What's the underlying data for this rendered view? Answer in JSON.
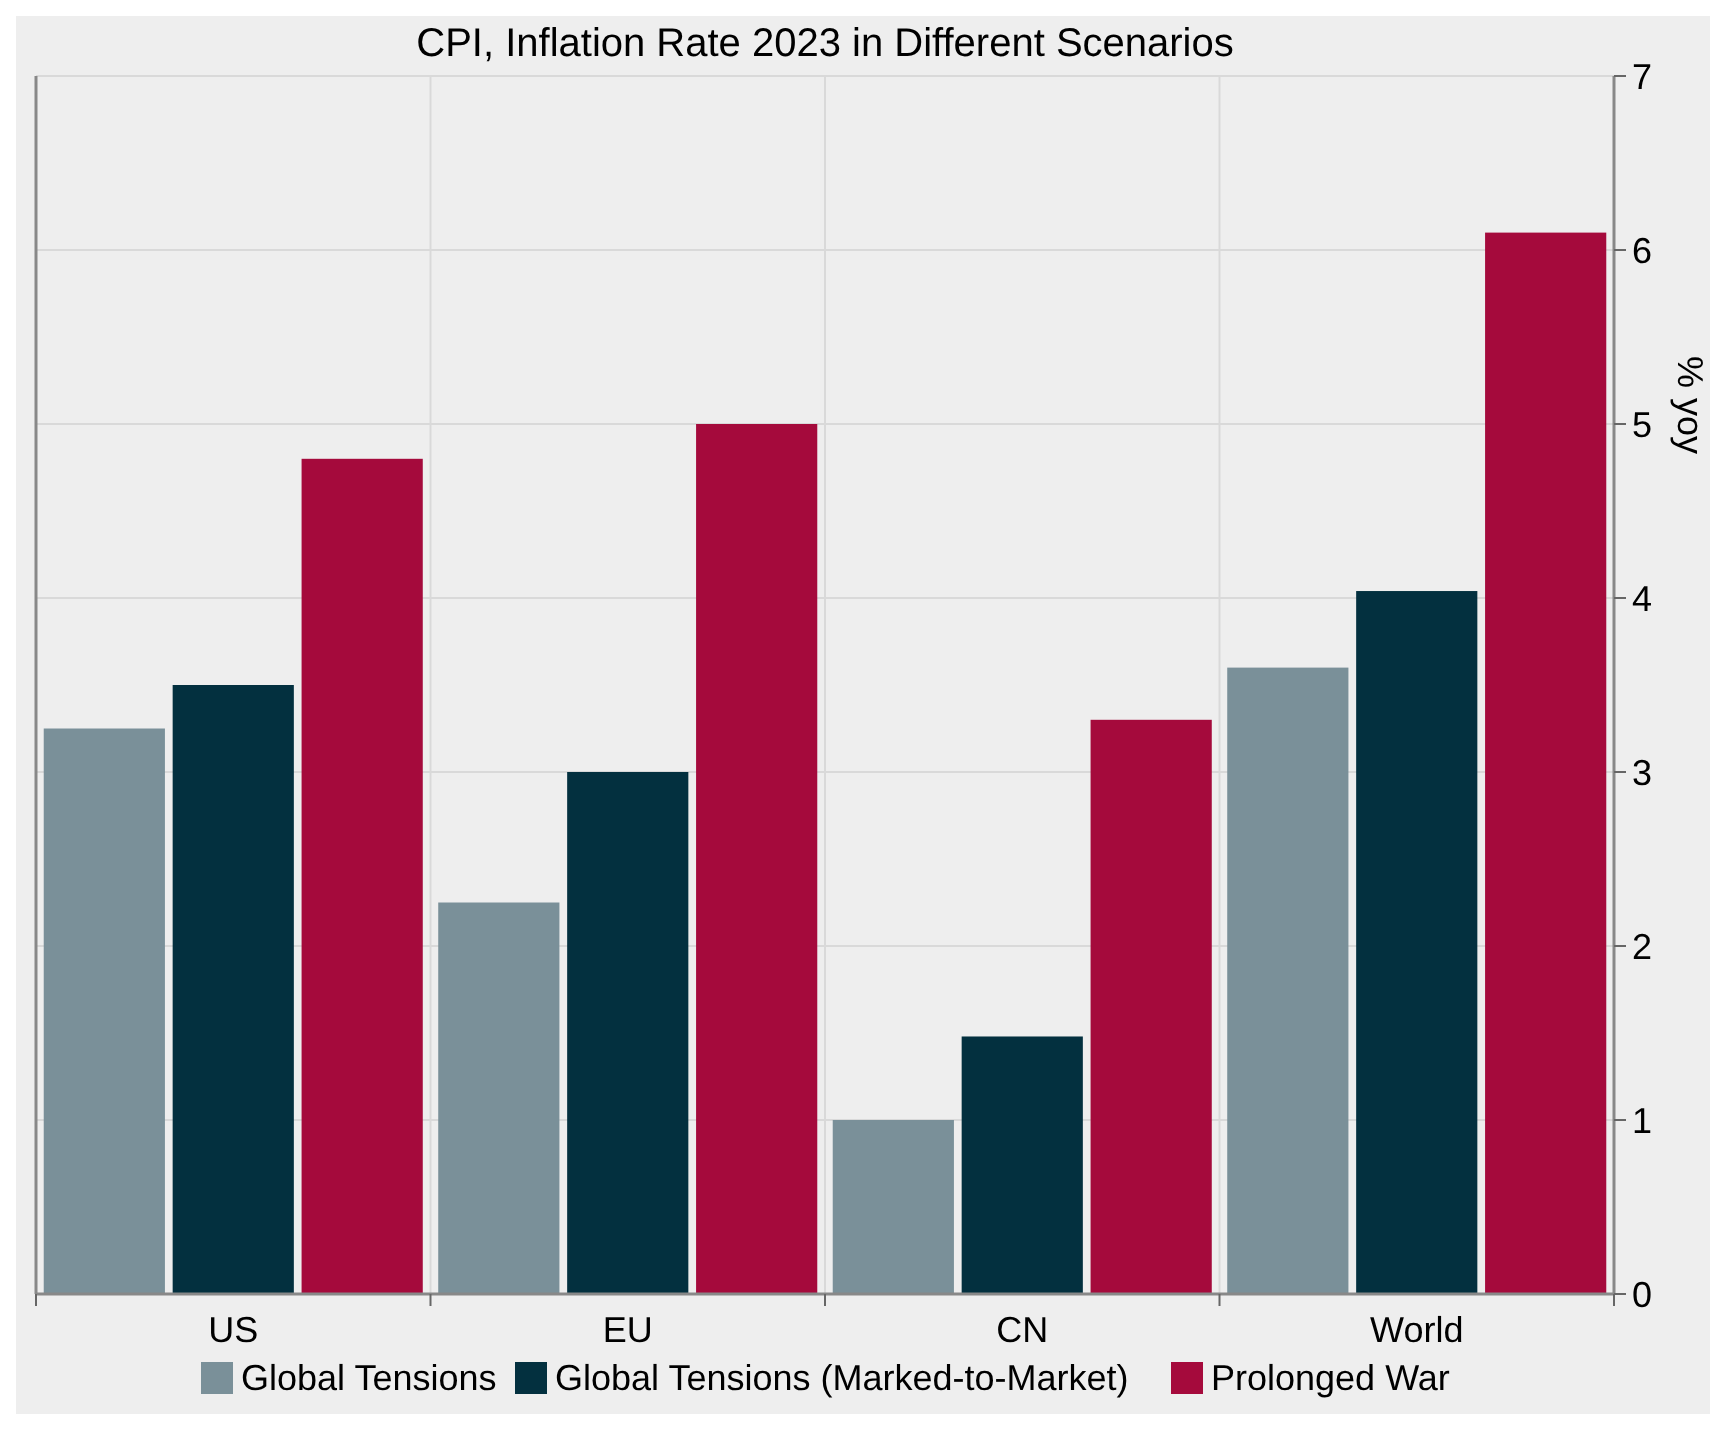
{
  "chart_data": {
    "type": "bar",
    "title": "CPI, Inflation Rate 2023 in Different Scenarios",
    "ylabel": "% yoy",
    "categories": [
      "US",
      "EU",
      "CN",
      "World"
    ],
    "series": [
      {
        "name": "Global Tensions",
        "color": "#7a9099",
        "values": [
          3.25,
          2.25,
          1.0,
          3.6
        ]
      },
      {
        "name": "Global Tensions (Marked-to-Market)",
        "color": "#03303f",
        "values": [
          3.5,
          3.0,
          1.48,
          4.04
        ]
      },
      {
        "name": "Prolonged War",
        "color": "#a50a3c",
        "values": [
          4.8,
          5.0,
          3.3,
          6.1
        ]
      }
    ],
    "ylim": [
      0,
      7
    ],
    "yticks": [
      0,
      1,
      2,
      3,
      4,
      5,
      6,
      7
    ],
    "grid": true,
    "legend": "bottom"
  }
}
